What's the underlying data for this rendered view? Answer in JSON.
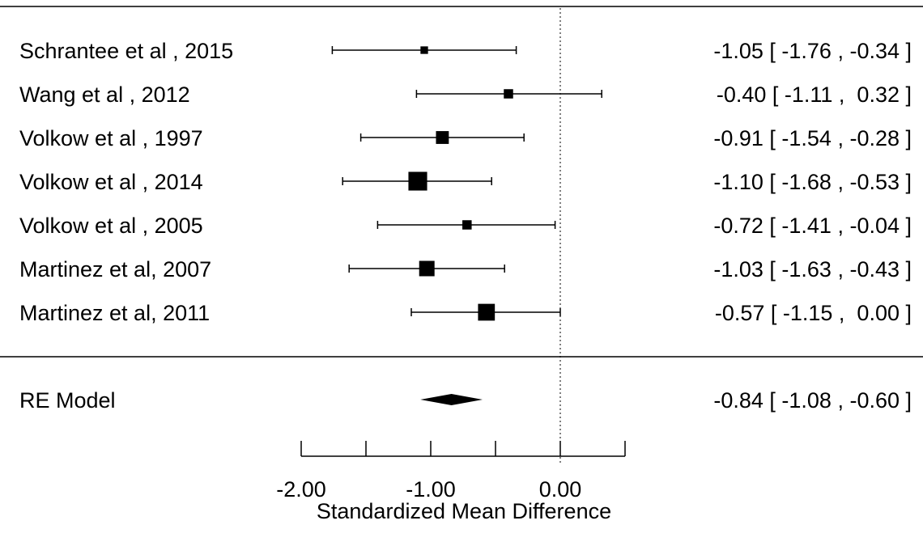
{
  "chart_data": {
    "type": "forest",
    "xlabel": "Standardized Mean Difference",
    "xlim": [
      -2.0,
      0.5
    ],
    "x_ticks": [
      -2.0,
      -1.5,
      -1.0,
      -0.5,
      0.0,
      0.5
    ],
    "x_tick_labels": [
      {
        "value": -2.0,
        "label": "-2.00"
      },
      {
        "value": -1.0,
        "label": "-1.00"
      },
      {
        "value": 0.0,
        "label": "0.00"
      }
    ],
    "reference_line": 0.0,
    "studies": [
      {
        "label": "Schrantee et al , 2015",
        "estimate": -1.05,
        "ci_low": -1.76,
        "ci_high": -0.34,
        "weight": 1,
        "text": "-1.05 [ -1.76 , -0.34 ]"
      },
      {
        "label": "Wang et al , 2012",
        "estimate": -0.4,
        "ci_low": -1.11,
        "ci_high": 0.32,
        "weight": 2,
        "text": "-0.40 [ -1.11 ,  0.32 ]"
      },
      {
        "label": "Volkow et al , 1997",
        "estimate": -0.91,
        "ci_low": -1.54,
        "ci_high": -0.28,
        "weight": 5,
        "text": "-0.91 [ -1.54 , -0.28 ]"
      },
      {
        "label": "Volkow et al , 2014",
        "estimate": -1.1,
        "ci_low": -1.68,
        "ci_high": -0.53,
        "weight": 13,
        "text": "-1.10 [ -1.68 , -0.53 ]"
      },
      {
        "label": "Volkow et al , 2005",
        "estimate": -0.72,
        "ci_low": -1.41,
        "ci_high": -0.04,
        "weight": 2,
        "text": "-0.72 [ -1.41 , -0.04 ]"
      },
      {
        "label": "Martinez et al, 2007",
        "estimate": -1.03,
        "ci_low": -1.63,
        "ci_high": -0.43,
        "weight": 8,
        "text": "-1.03 [ -1.63 , -0.43 ]"
      },
      {
        "label": "Martinez et al, 2011",
        "estimate": -0.57,
        "ci_low": -1.15,
        "ci_high": 0.0,
        "weight": 10,
        "text": "-0.57 [ -1.15 ,  0.00 ]"
      }
    ],
    "summary": {
      "label": "RE Model",
      "estimate": -0.84,
      "ci_low": -1.08,
      "ci_high": -0.6,
      "text": "-0.84 [ -1.08 , -0.60 ]"
    }
  }
}
